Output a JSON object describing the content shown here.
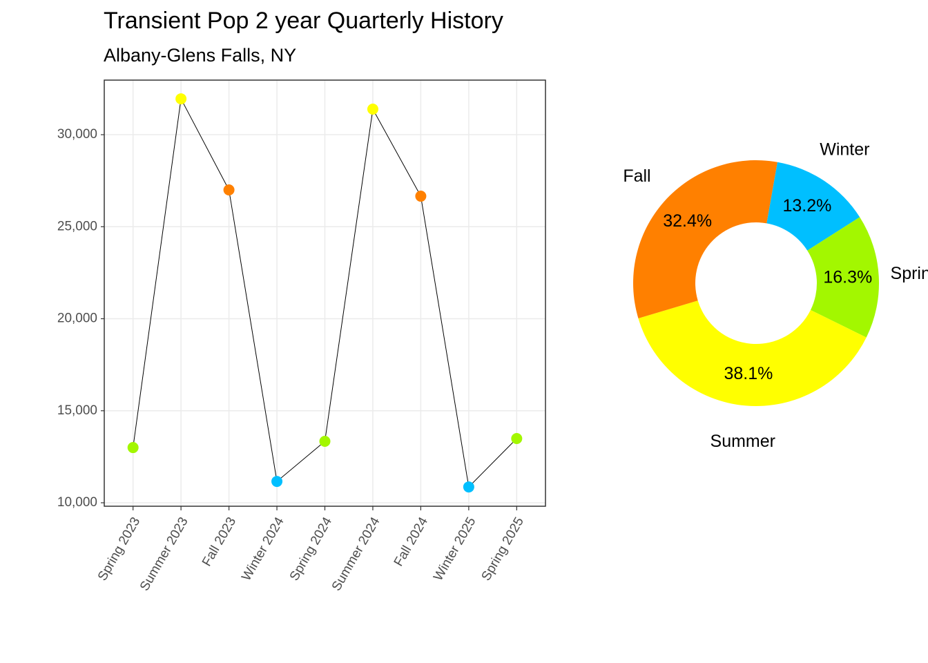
{
  "chart_data": [
    {
      "type": "line",
      "title": "Transient Pop 2 year Quarterly History",
      "subtitle": "Albany-Glens Falls, NY",
      "categories": [
        "Spring 2023",
        "Summer 2023",
        "Fall 2023",
        "Winter 2024",
        "Spring 2024",
        "Summer 2024",
        "Fall 2024",
        "Winter 2025",
        "Spring 2025"
      ],
      "series": [
        {
          "color": "#000000",
          "values": [
            13000,
            31950,
            27000,
            11160,
            13340,
            31390,
            26660,
            10860,
            13490
          ],
          "point_colors": [
            "#a3f700",
            "#ffff00",
            "#ff8000",
            "#00bfff",
            "#a3f700",
            "#ffff00",
            "#ff8000",
            "#00bfff",
            "#a3f700"
          ]
        }
      ],
      "ylim": [
        9812,
        32966
      ],
      "yticks": [
        {
          "value": 10000,
          "label": "10,000"
        },
        {
          "value": 15000,
          "label": "15,000"
        },
        {
          "value": 20000,
          "label": "20,000"
        },
        {
          "value": 25000,
          "label": "25,000"
        },
        {
          "value": 30000,
          "label": "30,000"
        }
      ],
      "grid": true
    },
    {
      "type": "donut",
      "categories": [
        "Winter",
        "Spring",
        "Summer",
        "Fall"
      ],
      "values": [
        13.2,
        16.3,
        38.1,
        32.4
      ],
      "value_labels": [
        "13.2%",
        "16.3%",
        "38.1%",
        "32.4%"
      ],
      "colors": [
        "#00bfff",
        "#a3f700",
        "#ffff00",
        "#ff8000"
      ]
    }
  ]
}
